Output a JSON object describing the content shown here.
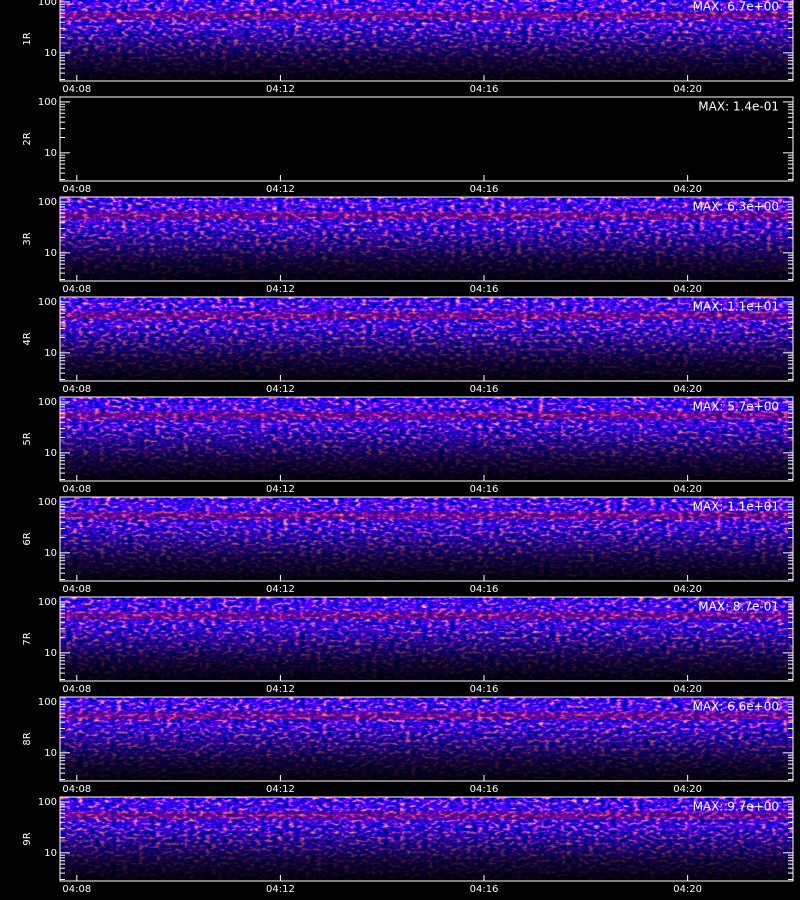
{
  "chart_data": [
    {
      "type": "heatmap",
      "ylabel": "1R",
      "annotation": "MAX: 6.7e+00",
      "log": true,
      "ylim": [
        2.8,
        125
      ],
      "yticks": [
        10,
        100
      ],
      "yminorticks": [
        3,
        4,
        5,
        6,
        7,
        8,
        9,
        20,
        30,
        40,
        50,
        60,
        70,
        80,
        90
      ],
      "xlim": [
        7.67,
        22.07
      ],
      "xticks": [
        {
          "value": 8,
          "label": "04:08"
        },
        {
          "value": 12,
          "label": "04:12"
        },
        {
          "value": 16,
          "label": "04:16"
        },
        {
          "value": 20,
          "label": "04:20"
        }
      ]
    },
    {
      "type": "heatmap",
      "ylabel": "2R",
      "annotation": "MAX: 1.4e-01",
      "log": true,
      "ylim": [
        2.8,
        125
      ],
      "yticks": [
        10,
        100
      ],
      "yminorticks": [
        3,
        4,
        5,
        6,
        7,
        8,
        9,
        20,
        30,
        40,
        50,
        60,
        70,
        80,
        90
      ],
      "xlim": [
        7.67,
        22.07
      ],
      "xticks": [
        {
          "value": 8,
          "label": "04:08"
        },
        {
          "value": 12,
          "label": "04:12"
        },
        {
          "value": 16,
          "label": "04:16"
        },
        {
          "value": 20,
          "label": "04:20"
        }
      ]
    },
    {
      "type": "heatmap",
      "ylabel": "3R",
      "annotation": "MAX: 6.3e+00",
      "log": true,
      "ylim": [
        2.8,
        125
      ],
      "yticks": [
        10,
        100
      ],
      "yminorticks": [
        3,
        4,
        5,
        6,
        7,
        8,
        9,
        20,
        30,
        40,
        50,
        60,
        70,
        80,
        90
      ],
      "xlim": [
        7.67,
        22.07
      ],
      "xticks": [
        {
          "value": 8,
          "label": "04:08"
        },
        {
          "value": 12,
          "label": "04:12"
        },
        {
          "value": 16,
          "label": "04:16"
        },
        {
          "value": 20,
          "label": "04:20"
        }
      ]
    },
    {
      "type": "heatmap",
      "ylabel": "4R",
      "annotation": "MAX: 1.1e+01",
      "log": true,
      "ylim": [
        2.8,
        125
      ],
      "yticks": [
        10,
        100
      ],
      "yminorticks": [
        3,
        4,
        5,
        6,
        7,
        8,
        9,
        20,
        30,
        40,
        50,
        60,
        70,
        80,
        90
      ],
      "xlim": [
        7.67,
        22.07
      ],
      "xticks": [
        {
          "value": 8,
          "label": "04:08"
        },
        {
          "value": 12,
          "label": "04:12"
        },
        {
          "value": 16,
          "label": "04:16"
        },
        {
          "value": 20,
          "label": "04:20"
        }
      ]
    },
    {
      "type": "heatmap",
      "ylabel": "5R",
      "annotation": "MAX: 5.7e+00",
      "log": true,
      "ylim": [
        2.8,
        125
      ],
      "yticks": [
        10,
        100
      ],
      "yminorticks": [
        3,
        4,
        5,
        6,
        7,
        8,
        9,
        20,
        30,
        40,
        50,
        60,
        70,
        80,
        90
      ],
      "xlim": [
        7.67,
        22.07
      ],
      "xticks": [
        {
          "value": 8,
          "label": "04:08"
        },
        {
          "value": 12,
          "label": "04:12"
        },
        {
          "value": 16,
          "label": "04:16"
        },
        {
          "value": 20,
          "label": "04:20"
        }
      ]
    },
    {
      "type": "heatmap",
      "ylabel": "6R",
      "annotation": "MAX: 1.1e+01",
      "log": true,
      "ylim": [
        2.8,
        125
      ],
      "yticks": [
        10,
        100
      ],
      "yminorticks": [
        3,
        4,
        5,
        6,
        7,
        8,
        9,
        20,
        30,
        40,
        50,
        60,
        70,
        80,
        90
      ],
      "xlim": [
        7.67,
        22.07
      ],
      "xticks": [
        {
          "value": 8,
          "label": "04:08"
        },
        {
          "value": 12,
          "label": "04:12"
        },
        {
          "value": 16,
          "label": "04:16"
        },
        {
          "value": 20,
          "label": "04:20"
        }
      ]
    },
    {
      "type": "heatmap",
      "ylabel": "7R",
      "annotation": "MAX: 8.7e-01",
      "log": true,
      "ylim": [
        2.8,
        125
      ],
      "yticks": [
        10,
        100
      ],
      "yminorticks": [
        3,
        4,
        5,
        6,
        7,
        8,
        9,
        20,
        30,
        40,
        50,
        60,
        70,
        80,
        90
      ],
      "xlim": [
        7.67,
        22.07
      ],
      "xticks": [
        {
          "value": 8,
          "label": "04:08"
        },
        {
          "value": 12,
          "label": "04:12"
        },
        {
          "value": 16,
          "label": "04:16"
        },
        {
          "value": 20,
          "label": "04:20"
        }
      ]
    },
    {
      "type": "heatmap",
      "ylabel": "8R",
      "annotation": "MAX: 6.6e+00",
      "log": true,
      "ylim": [
        2.8,
        125
      ],
      "yticks": [
        10,
        100
      ],
      "yminorticks": [
        3,
        4,
        5,
        6,
        7,
        8,
        9,
        20,
        30,
        40,
        50,
        60,
        70,
        80,
        90
      ],
      "xlim": [
        7.67,
        22.07
      ],
      "xticks": [
        {
          "value": 8,
          "label": "04:08"
        },
        {
          "value": 12,
          "label": "04:12"
        },
        {
          "value": 16,
          "label": "04:16"
        },
        {
          "value": 20,
          "label": "04:20"
        }
      ]
    },
    {
      "type": "heatmap",
      "ylabel": "9R",
      "annotation": "MAX: 9.7e+00",
      "log": true,
      "ylim": [
        2.8,
        125
      ],
      "yticks": [
        10,
        100
      ],
      "yminorticks": [
        3,
        4,
        5,
        6,
        7,
        8,
        9,
        20,
        30,
        40,
        50,
        60,
        70,
        80,
        90
      ],
      "xlim": [
        7.67,
        22.07
      ],
      "xticks": [
        {
          "value": 8,
          "label": "04:08"
        },
        {
          "value": 12,
          "label": "04:12"
        },
        {
          "value": 16,
          "label": "04:16"
        },
        {
          "value": 20,
          "label": "04:20"
        }
      ]
    }
  ]
}
